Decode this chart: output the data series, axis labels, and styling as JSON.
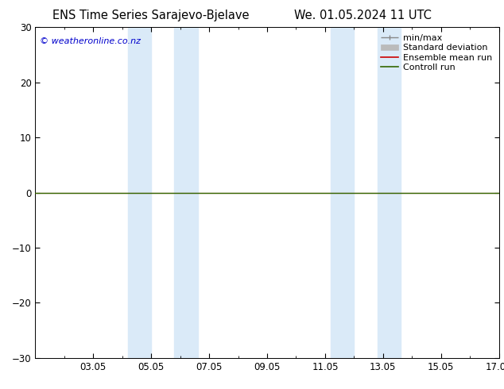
{
  "title_left": "ENS Time Series Sarajevo-Bjelave",
  "title_right": "We. 01.05.2024 11 UTC",
  "ylim": [
    -30,
    30
  ],
  "yticks": [
    -30,
    -20,
    -10,
    0,
    10,
    20,
    30
  ],
  "xtick_labels": [
    "03.05",
    "05.05",
    "07.05",
    "09.05",
    "11.05",
    "13.05",
    "15.05",
    "17.05"
  ],
  "xtick_positions": [
    2,
    4,
    6,
    8,
    10,
    12,
    14,
    16
  ],
  "xlim": [
    0,
    16
  ],
  "blue_bands": [
    [
      3.2,
      4.0
    ],
    [
      4.8,
      5.6
    ],
    [
      10.2,
      11.0
    ],
    [
      11.8,
      12.6
    ]
  ],
  "blue_band_color": "#daeaf8",
  "control_run_color": "#336600",
  "ensemble_mean_color": "#cc0000",
  "watermark_text": "© weatheronline.co.nz",
  "watermark_color": "#0000cc",
  "background_color": "#ffffff",
  "legend_entries": [
    "min/max",
    "Standard deviation",
    "Ensemble mean run",
    "Controll run"
  ],
  "legend_line_colors": [
    "#888888",
    "#bbbbbb",
    "#cc0000",
    "#336600"
  ],
  "title_fontsize": 10.5,
  "tick_fontsize": 8.5,
  "legend_fontsize": 8
}
